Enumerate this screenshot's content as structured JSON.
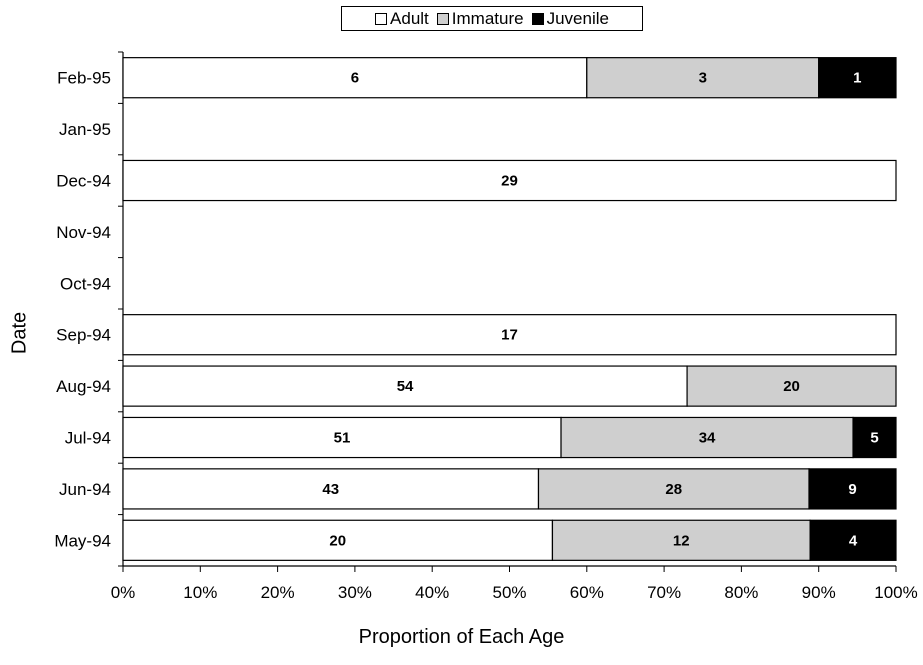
{
  "chart_data": {
    "type": "bar",
    "orientation": "horizontal",
    "stacked": "percent",
    "categories": [
      "May-94",
      "Jun-94",
      "Jul-94",
      "Aug-94",
      "Sep-94",
      "Oct-94",
      "Nov-94",
      "Dec-94",
      "Jan-95",
      "Feb-95"
    ],
    "series": [
      {
        "name": "Adult",
        "color": "#ffffff",
        "values": [
          20,
          43,
          51,
          54,
          17,
          0,
          0,
          29,
          0,
          6
        ]
      },
      {
        "name": "Immature",
        "color": "#cfcfcf",
        "values": [
          12,
          28,
          34,
          20,
          0,
          0,
          0,
          0,
          0,
          3
        ]
      },
      {
        "name": "Juvenile",
        "color": "#000000",
        "values": [
          4,
          9,
          5,
          0,
          0,
          0,
          0,
          0,
          0,
          1
        ]
      }
    ],
    "xlabel": "Proportion of Each Age",
    "ylabel": "Date",
    "xlim": [
      0,
      100
    ],
    "xticks": [
      "0%",
      "10%",
      "20%",
      "30%",
      "40%",
      "50%",
      "60%",
      "70%",
      "80%",
      "90%",
      "100%"
    ],
    "legend_position": "top",
    "grid": false
  }
}
